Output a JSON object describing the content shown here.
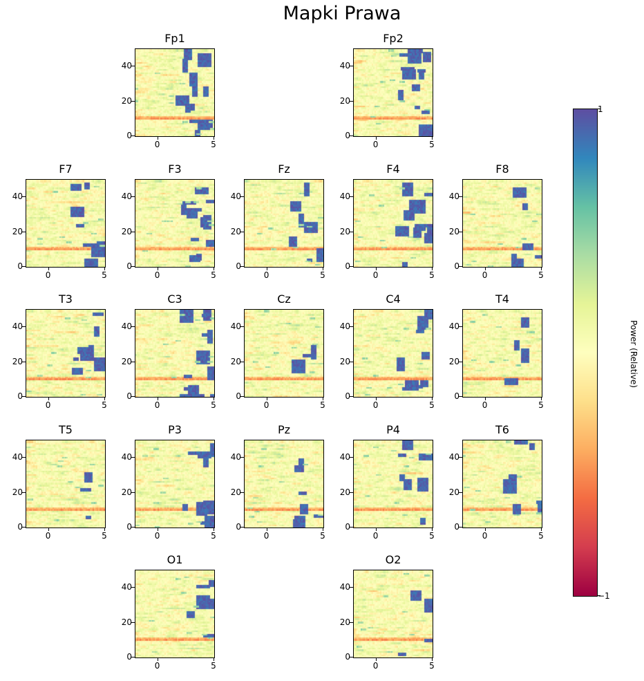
{
  "chart_data": {
    "type": "heatmap",
    "title": "Mapki Prawa",
    "colormap": "Spectral",
    "colorbar": {
      "label": "Power (Relative)",
      "min": -1,
      "max": 1,
      "tick_labels": [
        "1",
        "−1"
      ]
    },
    "xlim": [
      -2,
      5
    ],
    "ylim": [
      0,
      50
    ],
    "x_ticks": [
      0,
      5
    ],
    "y_ticks": [
      0,
      20,
      40
    ],
    "x_tick_labels": [
      "0",
      "5"
    ],
    "y_tick_labels": [
      "0",
      "20",
      "40"
    ],
    "panels": [
      {
        "name": "Fp1",
        "row": 0,
        "col": 1
      },
      {
        "name": "Fp2",
        "row": 0,
        "col": 3
      },
      {
        "name": "F7",
        "row": 1,
        "col": 0
      },
      {
        "name": "F3",
        "row": 1,
        "col": 1
      },
      {
        "name": "Fz",
        "row": 1,
        "col": 2
      },
      {
        "name": "F4",
        "row": 1,
        "col": 3
      },
      {
        "name": "F8",
        "row": 1,
        "col": 4
      },
      {
        "name": "T3",
        "row": 2,
        "col": 0
      },
      {
        "name": "C3",
        "row": 2,
        "col": 1
      },
      {
        "name": "Cz",
        "row": 2,
        "col": 2
      },
      {
        "name": "C4",
        "row": 2,
        "col": 3
      },
      {
        "name": "T4",
        "row": 2,
        "col": 4
      },
      {
        "name": "T5",
        "row": 3,
        "col": 0
      },
      {
        "name": "P3",
        "row": 3,
        "col": 1
      },
      {
        "name": "Pz",
        "row": 3,
        "col": 2
      },
      {
        "name": "P4",
        "row": 3,
        "col": 3
      },
      {
        "name": "T6",
        "row": 3,
        "col": 4
      },
      {
        "name": "O1",
        "row": 4,
        "col": 1
      },
      {
        "name": "O2",
        "row": 4,
        "col": 3
      }
    ]
  }
}
